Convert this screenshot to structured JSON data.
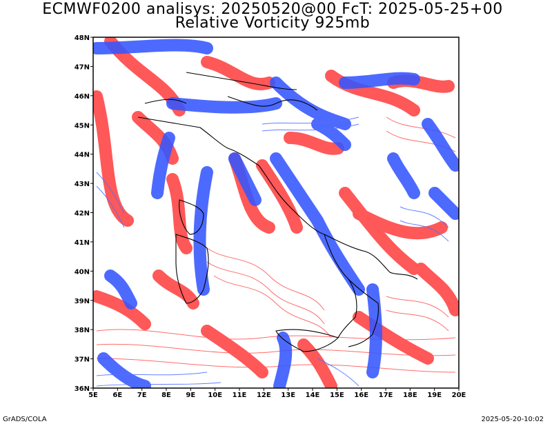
{
  "header": {
    "title_line1": "ECMWF0200 analisys: 20250520@00 FcT: 2025-05-25+00",
    "title_line2": "Relative Vorticity 925mb"
  },
  "map": {
    "lon_labels": [
      "5E",
      "6E",
      "7E",
      "8E",
      "9E",
      "10E",
      "11E",
      "12E",
      "13E",
      "14E",
      "15E",
      "16E",
      "17E",
      "18E",
      "19E",
      "20E"
    ],
    "lat_labels": [
      "36N",
      "37N",
      "38N",
      "39N",
      "40N",
      "41N",
      "42N",
      "43N",
      "44N",
      "45N",
      "46N",
      "47N",
      "48N"
    ],
    "lon_range": [
      5,
      20
    ],
    "lat_range": [
      36,
      48
    ],
    "colors": {
      "positive_vorticity": "#ff3b3b",
      "negative_vorticity": "#3556ff",
      "coastline": "#000000",
      "frame": "#000000"
    }
  },
  "footer": {
    "credit": "GrADS/COLA",
    "timestamp": "2025-05-20-10:02"
  }
}
